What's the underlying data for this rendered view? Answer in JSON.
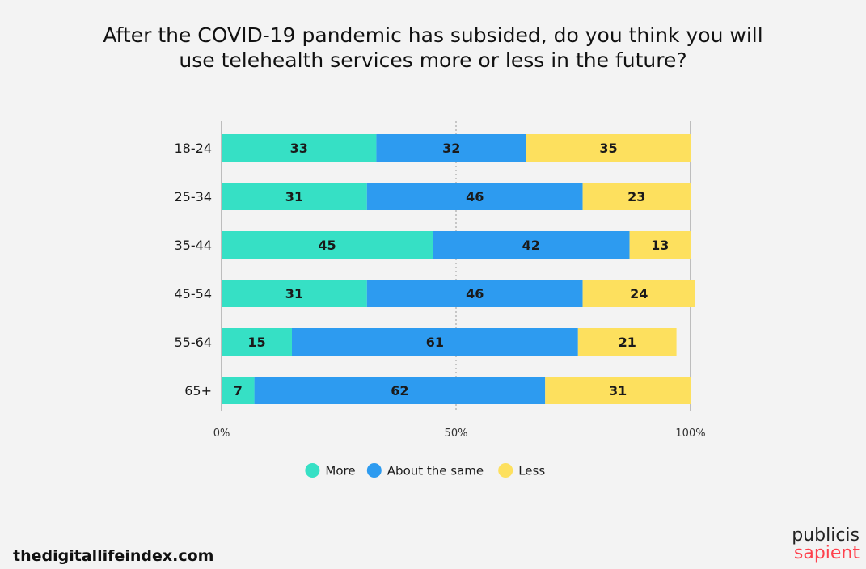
{
  "title_lines": [
    "After the COVID-19 pandemic has subsided, do you think you will",
    "use telehealth services more or less in the future?"
  ],
  "chart_data": {
    "type": "bar",
    "orientation": "horizontal",
    "stacked": true,
    "categories": [
      "18-24",
      "25-34",
      "35-44",
      "45-54",
      "55-64",
      "65+"
    ],
    "series": [
      {
        "name": "More",
        "color": "#36e0c5",
        "values": [
          33,
          31,
          45,
          31,
          15,
          7
        ]
      },
      {
        "name": "About the same",
        "color": "#2d9bf0",
        "values": [
          32,
          46,
          42,
          46,
          61,
          62
        ]
      },
      {
        "name": "Less",
        "color": "#fde05e",
        "values": [
          35,
          23,
          13,
          24,
          21,
          31
        ]
      }
    ],
    "xlim": [
      0,
      100
    ],
    "x_ticks": [
      "0%",
      "50%",
      "100%"
    ],
    "legend_position": "bottom"
  },
  "footer": {
    "site": "thedigitallifeindex.com",
    "brand_top": "publicis",
    "brand_bottom": "sapient"
  }
}
